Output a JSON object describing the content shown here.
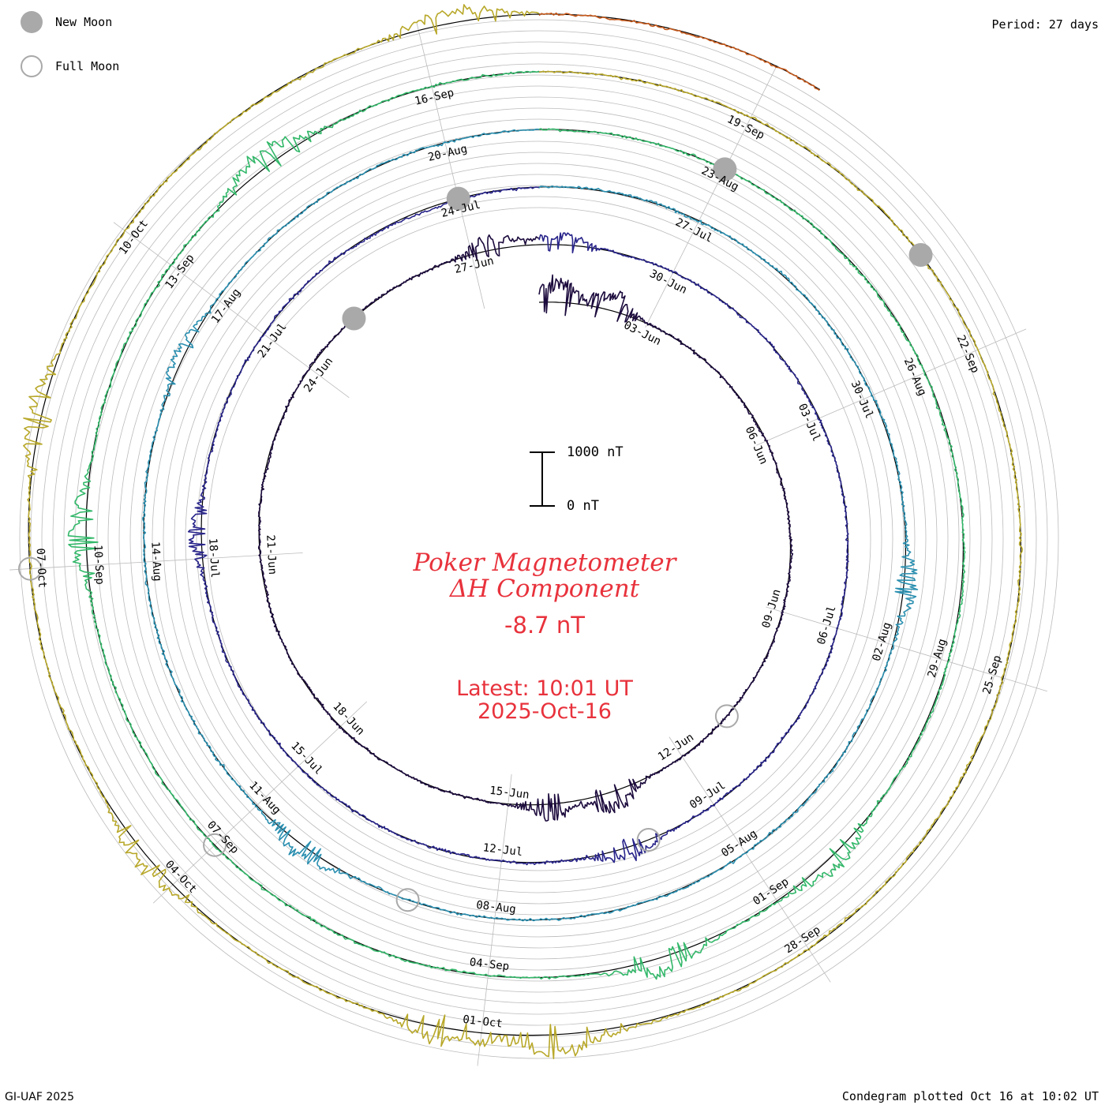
{
  "legend": [
    {
      "label": "New Moon",
      "icon": "new-moon-icon"
    },
    {
      "label": "Full Moon",
      "icon": "full-moon-icon"
    }
  ],
  "period_label": "Period: 27 days",
  "title_line1": "Poker Magnetometer",
  "title_line2": "ΔH Component",
  "current_value": "-8.7 nT",
  "latest_line1": "Latest: 10:01 UT",
  "latest_line2": "2025-Oct-16",
  "scale": {
    "top_label": "1000 nT",
    "bottom_label": "0 nT"
  },
  "footer_left": "GI-UAF 2025",
  "footer_right": "Condegram plotted Oct 16 at 10:02 UT",
  "colors": {
    "title": "#e8323c",
    "new_moon": "#a9a9a9",
    "grid": "#bbbbbb",
    "baseline": "#000000"
  },
  "chart_data": {
    "type": "line",
    "subtype": "condegram (spiral time series)",
    "title": "Poker Magnetometer ΔH Component",
    "units": "nT",
    "period_days": 27,
    "scale_bar_nT": [
      0,
      1000
    ],
    "time_range": [
      "2025-06-01",
      "2025-10-16"
    ],
    "rings": [
      {
        "start": "2025-06-01",
        "color": "#1b0a3c"
      },
      {
        "start": "2025-06-28",
        "color": "#28248a"
      },
      {
        "start": "2025-07-25",
        "color": "#2a8fb0"
      },
      {
        "start": "2025-08-21",
        "color": "#33b86a"
      },
      {
        "start": "2025-09-17",
        "color": "#b8a82a"
      },
      {
        "start": "2025-10-14",
        "color": "#c4581a"
      }
    ],
    "date_labels": [
      {
        "label": "03-Jun"
      },
      {
        "label": "06-Jun"
      },
      {
        "label": "09-Jun"
      },
      {
        "label": "12-Jun"
      },
      {
        "label": "15-Jun"
      },
      {
        "label": "18-Jun"
      },
      {
        "label": "21-Jun"
      },
      {
        "label": "24-Jun"
      },
      {
        "label": "27-Jun"
      },
      {
        "label": "30-Jun"
      },
      {
        "label": "03-Jul"
      },
      {
        "label": "06-Jul"
      },
      {
        "label": "09-Jul"
      },
      {
        "label": "12-Jul"
      },
      {
        "label": "15-Jul"
      },
      {
        "label": "18-Jul"
      },
      {
        "label": "21-Jul"
      },
      {
        "label": "24-Jul"
      },
      {
        "label": "27-Jul"
      },
      {
        "label": "30-Jul"
      },
      {
        "label": "02-Aug"
      },
      {
        "label": "05-Aug"
      },
      {
        "label": "08-Aug"
      },
      {
        "label": "11-Aug"
      },
      {
        "label": "14-Aug"
      },
      {
        "label": "17-Aug"
      },
      {
        "label": "20-Aug"
      },
      {
        "label": "23-Aug"
      },
      {
        "label": "26-Aug"
      },
      {
        "label": "29-Aug"
      },
      {
        "label": "01-Sep"
      },
      {
        "label": "04-Sep"
      },
      {
        "label": "07-Sep"
      },
      {
        "label": "10-Sep"
      },
      {
        "label": "13-Sep"
      },
      {
        "label": "16-Sep"
      },
      {
        "label": "19-Sep"
      },
      {
        "label": "22-Sep"
      },
      {
        "label": "25-Sep"
      },
      {
        "label": "28-Sep"
      },
      {
        "label": "01-Oct"
      },
      {
        "label": "04-Oct"
      },
      {
        "label": "07-Oct"
      },
      {
        "label": "10-Oct"
      }
    ],
    "new_moons": [
      "2025-06-25",
      "2025-07-24",
      "2025-08-23",
      "2025-09-21"
    ],
    "full_moons": [
      "2025-06-11",
      "2025-07-10",
      "2025-08-09",
      "2025-09-07",
      "2025-10-07"
    ],
    "disturbances_nT": [
      {
        "date": "2025-06-01",
        "peak": 380
      },
      {
        "date": "2025-06-02",
        "peak": 300
      },
      {
        "date": "2025-06-13",
        "peak": 310
      },
      {
        "date": "2025-06-14",
        "peak": 240
      },
      {
        "date": "2025-06-27",
        "peak": 230
      },
      {
        "date": "2025-06-28",
        "peak": 190
      },
      {
        "date": "2025-07-10",
        "peak": 200
      },
      {
        "date": "2025-07-18",
        "peak": 170
      },
      {
        "date": "2025-08-01",
        "peak": 210
      },
      {
        "date": "2025-08-10",
        "peak": 220
      },
      {
        "date": "2025-08-16",
        "peak": 180
      },
      {
        "date": "2025-08-31",
        "peak": 230
      },
      {
        "date": "2025-09-02",
        "peak": 260
      },
      {
        "date": "2025-09-10",
        "peak": 280
      },
      {
        "date": "2025-09-14",
        "peak": 310
      },
      {
        "date": "2025-09-30",
        "peak": 350
      },
      {
        "date": "2025-10-01",
        "peak": 300
      },
      {
        "date": "2025-10-04",
        "peak": 240
      },
      {
        "date": "2025-10-08",
        "peak": 260
      },
      {
        "date": "2025-10-13",
        "peak": 240
      }
    ]
  }
}
